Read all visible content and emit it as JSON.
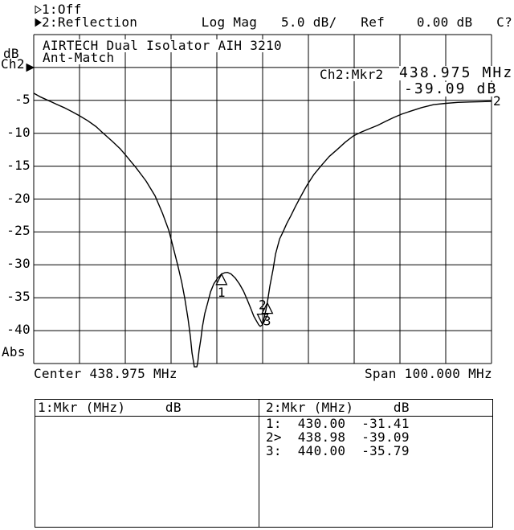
{
  "colors": {
    "fg": "#000000",
    "bg": "#ffffff"
  },
  "header": {
    "line1": "1:Off",
    "line2": "2:Reflection        Log Mag   5.0 dB/   Ref    0.00 dB   C?"
  },
  "icons": {
    "channel1_bullet": "hollow-right-triangle",
    "channel2_bullet": "filled-right-triangle",
    "ref_level_arrow": "filled-right-triangle",
    "marker_symbol": "hollow-up-triangle",
    "active_marker_symbol": "hollow-down-triangle"
  },
  "axis_left": {
    "unit": "dB",
    "channel": "Ch2",
    "qualifier": "Abs",
    "tick_labels": [
      "-5",
      "-10",
      "-15",
      "-20",
      "-25",
      "-30",
      "-35",
      "-40"
    ]
  },
  "annotation": {
    "line1": "AIRTECH Dual Isolator AIH 3210",
    "line2": "Ant-Match"
  },
  "marker_readout": {
    "label": "Ch2:Mkr2",
    "freq": "438.975 MHz",
    "value": "-39.09 dB"
  },
  "trace_label": "2",
  "x_axis": {
    "center_label": "Center 438.975 MHz",
    "span_label": "Span 100.000 MHz"
  },
  "marker_table": {
    "left_header": "1:Mkr (MHz)     dB",
    "right_header": "2:Mkr (MHz)     dB",
    "left_rows": [],
    "right_rows": [
      "1:  430.00  -31.41",
      "2>  438.98  -39.09",
      "3:  440.00  -35.79"
    ]
  },
  "chart_data": {
    "type": "line",
    "title": "AIRTECH Dual Isolator AIH 3210 Ant-Match",
    "measurement": "Reflection Log Mag",
    "scale_db_per_div": 5.0,
    "ref_db": 0.0,
    "center_mhz": 438.975,
    "span_mhz": 100.0,
    "x_start_mhz": 388.975,
    "x_stop_mhz": 488.975,
    "top_db": 5,
    "bottom_db": -45,
    "grid_cols": 10,
    "grid_rows": 10,
    "markers": [
      {
        "n": "1",
        "mhz": 430.0,
        "db": -31.41,
        "active": false
      },
      {
        "n": "2",
        "mhz": 438.98,
        "db": -39.09,
        "active": true
      },
      {
        "n": "3",
        "mhz": 440.0,
        "db": -35.79,
        "active": false
      }
    ],
    "trace_mhz_db": [
      [
        388.98,
        -3.91
      ],
      [
        390.5,
        -4.5
      ],
      [
        392.1,
        -5.0
      ],
      [
        394.0,
        -5.6
      ],
      [
        395.6,
        -6.1
      ],
      [
        397.3,
        -6.7
      ],
      [
        399.0,
        -7.35
      ],
      [
        400.8,
        -8.1
      ],
      [
        402.6,
        -9.0
      ],
      [
        404.4,
        -10.15
      ],
      [
        406.1,
        -11.2
      ],
      [
        407.9,
        -12.4
      ],
      [
        409.2,
        -13.45
      ],
      [
        411.4,
        -15.3
      ],
      [
        413.5,
        -17.25
      ],
      [
        415.5,
        -19.55
      ],
      [
        417.1,
        -22.15
      ],
      [
        418.5,
        -24.8
      ],
      [
        419.5,
        -27.5
      ],
      [
        420.4,
        -29.95
      ],
      [
        421.3,
        -32.65
      ],
      [
        422.0,
        -35.2
      ],
      [
        422.7,
        -38.25
      ],
      [
        423.2,
        -40.95
      ],
      [
        423.55,
        -43.4
      ],
      [
        423.9,
        -44.85
      ],
      [
        424.05,
        -45.5
      ],
      [
        424.6,
        -45.5
      ],
      [
        424.8,
        -44.85
      ],
      [
        425.1,
        -43.0
      ],
      [
        425.5,
        -41.2
      ],
      [
        425.8,
        -39.5
      ],
      [
        426.35,
        -37.4
      ],
      [
        426.9,
        -35.95
      ],
      [
        427.6,
        -34.1
      ],
      [
        428.3,
        -32.9
      ],
      [
        429.15,
        -32.0
      ],
      [
        430.0,
        -31.41
      ],
      [
        430.7,
        -31.2
      ],
      [
        431.3,
        -31.15
      ],
      [
        432.1,
        -31.4
      ],
      [
        433.0,
        -32.0
      ],
      [
        433.9,
        -32.9
      ],
      [
        434.8,
        -34.0
      ],
      [
        435.65,
        -35.35
      ],
      [
        436.35,
        -36.55
      ],
      [
        437.05,
        -37.8
      ],
      [
        437.6,
        -38.5
      ],
      [
        438.1,
        -39.1
      ],
      [
        438.45,
        -39.35
      ],
      [
        438.98,
        -39.09
      ],
      [
        439.3,
        -38.0
      ],
      [
        439.7,
        -36.9
      ],
      [
        440.0,
        -35.79
      ],
      [
        440.55,
        -33.25
      ],
      [
        441.25,
        -30.7
      ],
      [
        441.8,
        -28.35
      ],
      [
        442.7,
        -26.05
      ],
      [
        443.4,
        -25.05
      ],
      [
        444.25,
        -23.7
      ],
      [
        445.1,
        -22.6
      ],
      [
        446.2,
        -21.05
      ],
      [
        447.05,
        -19.95
      ],
      [
        448.1,
        -18.6
      ],
      [
        448.8,
        -17.75
      ],
      [
        450.2,
        -16.25
      ],
      [
        451.8,
        -14.9
      ],
      [
        453.5,
        -13.55
      ],
      [
        455.3,
        -12.45
      ],
      [
        457.05,
        -11.35
      ],
      [
        458.8,
        -10.4
      ],
      [
        460.55,
        -9.8
      ],
      [
        462.3,
        -9.3
      ],
      [
        464.1,
        -8.8
      ],
      [
        465.8,
        -8.2
      ],
      [
        467.6,
        -7.6
      ],
      [
        469.3,
        -7.1
      ],
      [
        471.45,
        -6.6
      ],
      [
        473.7,
        -6.1
      ],
      [
        476.35,
        -5.65
      ],
      [
        479.0,
        -5.45
      ],
      [
        481.6,
        -5.3
      ],
      [
        484.25,
        -5.25
      ],
      [
        486.9,
        -5.2
      ],
      [
        488.98,
        -5.15
      ]
    ]
  }
}
